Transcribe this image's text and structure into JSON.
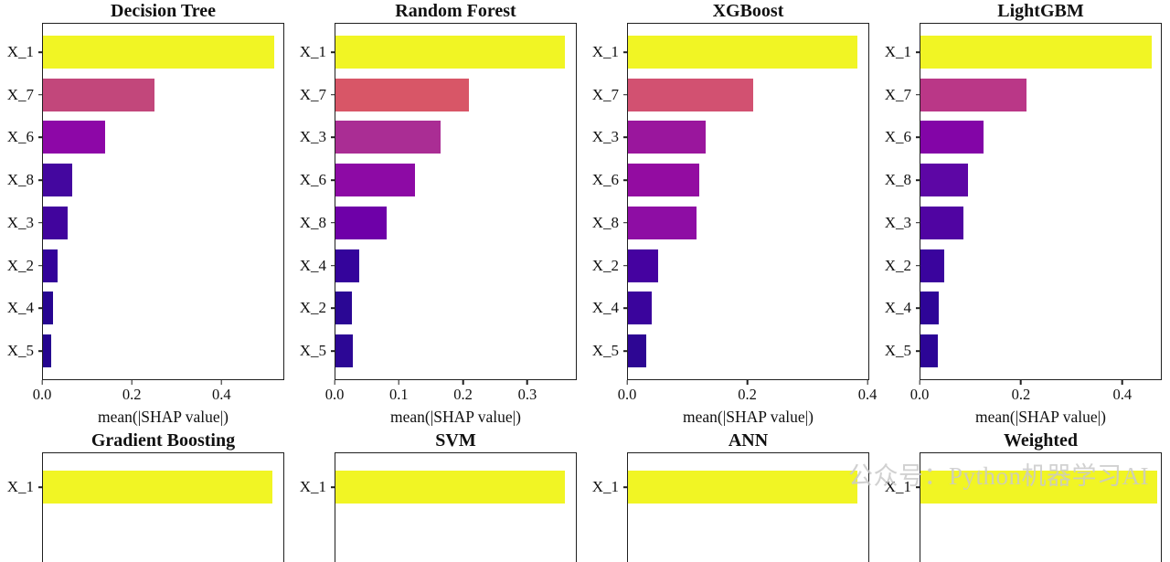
{
  "figure": {
    "background": "#ffffff",
    "axis_color": "#1f1f1f",
    "bar_max_color": "#f1f524"
  },
  "watermark": {
    "text": "公众号：Python机器学习AI",
    "color": "rgba(201,201,201,0.85)"
  },
  "chart_data": [
    {
      "type": "bar",
      "orientation": "horizontal",
      "title": "Decision Tree",
      "xlabel": "mean(|SHAP value|)",
      "categories": [
        "X_1",
        "X_7",
        "X_6",
        "X_8",
        "X_3",
        "X_2",
        "X_4",
        "X_5"
      ],
      "values": [
        0.52,
        0.25,
        0.14,
        0.065,
        0.055,
        0.033,
        0.022,
        0.019
      ],
      "xlim": [
        0,
        0.54
      ],
      "xticks": [
        0.0,
        0.2,
        0.4
      ],
      "xtick_labels": [
        "0.0",
        "0.2",
        "0.4"
      ],
      "colors": [
        "#f1f524",
        "#c2477b",
        "#8d07a7",
        "#44079f",
        "#41049d",
        "#33039a",
        "#270591",
        "#25058f"
      ],
      "grid": false,
      "legend": false
    },
    {
      "type": "bar",
      "orientation": "horizontal",
      "title": "Random Forest",
      "xlabel": "mean(|SHAP value|)",
      "categories": [
        "X_1",
        "X_7",
        "X_3",
        "X_6",
        "X_8",
        "X_4",
        "X_2",
        "X_5"
      ],
      "values": [
        0.36,
        0.21,
        0.165,
        0.125,
        0.08,
        0.037,
        0.026,
        0.027
      ],
      "xlim": [
        0,
        0.377
      ],
      "xticks": [
        0.0,
        0.1,
        0.2,
        0.3
      ],
      "xtick_labels": [
        "0.0",
        "0.1",
        "0.2",
        "0.3"
      ],
      "colors": [
        "#f1f524",
        "#d85667",
        "#aa2d94",
        "#8d0aa5",
        "#6e00a8",
        "#34049b",
        "#2a0794",
        "#2c0795"
      ],
      "grid": false,
      "legend": false
    },
    {
      "type": "bar",
      "orientation": "horizontal",
      "title": "XGBoost",
      "xlabel": "mean(|SHAP value|)",
      "categories": [
        "X_1",
        "X_7",
        "X_3",
        "X_6",
        "X_8",
        "X_2",
        "X_4",
        "X_5"
      ],
      "values": [
        0.385,
        0.21,
        0.13,
        0.12,
        0.115,
        0.05,
        0.04,
        0.03
      ],
      "xlim": [
        0,
        0.403
      ],
      "xticks": [
        0.0,
        0.2,
        0.4
      ],
      "xtick_labels": [
        "0.0",
        "0.2",
        "0.4"
      ],
      "colors": [
        "#f1f524",
        "#d25171",
        "#9a169d",
        "#930ca1",
        "#8e0da4",
        "#4502a0",
        "#3a049c",
        "#2d0693"
      ],
      "grid": false,
      "legend": false
    },
    {
      "type": "bar",
      "orientation": "horizontal",
      "title": "LightGBM",
      "xlabel": "mean(|SHAP value|)",
      "categories": [
        "X_1",
        "X_7",
        "X_6",
        "X_8",
        "X_3",
        "X_2",
        "X_4",
        "X_5"
      ],
      "values": [
        0.46,
        0.21,
        0.125,
        0.095,
        0.085,
        0.047,
        0.037,
        0.035
      ],
      "xlim": [
        0,
        0.478
      ],
      "xticks": [
        0.0,
        0.2,
        0.4
      ],
      "xtick_labels": [
        "0.0",
        "0.2",
        "0.4"
      ],
      "colors": [
        "#f1f524",
        "#ba3787",
        "#8305a7",
        "#5d06a5",
        "#5004a2",
        "#3a049d",
        "#2e0597",
        "#2c0596"
      ],
      "grid": false,
      "legend": false
    },
    {
      "type": "bar",
      "orientation": "horizontal",
      "partial": true,
      "title": "Gradient Boosting",
      "categories": [
        "X_1"
      ],
      "bar_fractions": [
        0.955
      ],
      "colors": [
        "#f1f524"
      ]
    },
    {
      "type": "bar",
      "orientation": "horizontal",
      "partial": true,
      "title": "SVM",
      "categories": [
        "X_1"
      ],
      "bar_fractions": [
        0.955
      ],
      "colors": [
        "#f1f524"
      ]
    },
    {
      "type": "bar",
      "orientation": "horizontal",
      "partial": true,
      "title": "ANN",
      "categories": [
        "X_1"
      ],
      "bar_fractions": [
        0.955
      ],
      "colors": [
        "#f1f524"
      ]
    },
    {
      "type": "bar",
      "orientation": "horizontal",
      "partial": true,
      "title": "Weighted",
      "categories": [
        "X_1"
      ],
      "bar_fractions": [
        0.985
      ],
      "colors": [
        "#f1f524"
      ]
    }
  ]
}
